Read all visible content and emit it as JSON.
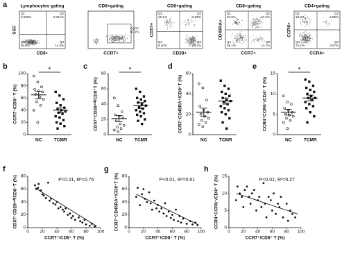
{
  "panel_a": {
    "label": "a",
    "plots": [
      {
        "title": "Lymphocytes gating",
        "x_label": "CD8+",
        "y_label": "SSC",
        "quadrants": [
          {
            "name": "Q1",
            "value": "0.000%"
          },
          {
            "name": "Q2",
            "value": "0.041%"
          },
          {
            "name": "Q4",
            "value": "85.6%"
          },
          {
            "name": "Q3",
            "value": "14.3%"
          }
        ]
      },
      {
        "title": "CD8+gating",
        "x_label": "CCR7+",
        "gate": {
          "name": "CCR7",
          "value": "81.2%"
        }
      },
      {
        "title": "CD8+gating",
        "x_label": "CD28+",
        "y_label": "CD57+",
        "quadrants": [
          {
            "name": "Q1",
            "value": "15.1%"
          },
          {
            "name": "Q2",
            "value": "8.89%"
          },
          {
            "name": "Q4",
            "value": "6.20%"
          },
          {
            "name": "Q3",
            "value": "69.7%"
          }
        ]
      },
      {
        "title": "CD8+gating",
        "x_label": "CCR7+",
        "y_label": "CD45RA+",
        "quadrants": [
          {
            "name": "Q1",
            "value": "20.6%"
          },
          {
            "name": "Q2",
            "value": "27.2%"
          },
          {
            "name": "Q4",
            "value": "39.1%"
          },
          {
            "name": "Q3",
            "value": "13.1%"
          }
        ]
      },
      {
        "title": "CD4+gating",
        "x_label": "CCR4+",
        "y_label": "CCR6+",
        "quadrants": [
          {
            "name": "Q1",
            "value": "18.9%"
          },
          {
            "name": "Q2",
            "value": "4.85%"
          },
          {
            "name": "Q4",
            "value": "73.1%"
          },
          {
            "name": "Q3",
            "value": "3.07%"
          }
        ]
      }
    ]
  },
  "chart_data": [
    {
      "type": "dot",
      "panel": "b",
      "y_label": "CCR7⁺/CD8⁺ T (%)",
      "categories": [
        "NC",
        "TCMR"
      ],
      "values": [
        [
          96,
          86,
          78,
          74,
          72,
          70,
          66,
          62,
          58,
          54,
          48,
          40,
          20
        ],
        [
          70,
          64,
          58,
          52,
          48,
          44,
          42,
          40,
          38,
          36,
          34,
          30,
          28,
          24,
          20,
          18,
          14,
          10
        ]
      ],
      "means": [
        65,
        40
      ],
      "sems": [
        6,
        4
      ],
      "annotation": "*",
      "ylim": [
        0,
        100
      ],
      "yticks": [
        0,
        20,
        40,
        60,
        80,
        100
      ]
    },
    {
      "type": "dot",
      "panel": "c",
      "y_label": "CD57⁺CD28ⁿᵘˡˡ/CD8⁺T (%)",
      "categories": [
        "NC",
        "TCMR"
      ],
      "values": [
        [
          48,
          38,
          30,
          26,
          24,
          22,
          18,
          14,
          12,
          10,
          8,
          6,
          4
        ],
        [
          60,
          56,
          50,
          48,
          46,
          44,
          42,
          40,
          38,
          36,
          34,
          32,
          30,
          28,
          26,
          24,
          20,
          18,
          14
        ]
      ],
      "means": [
        21,
        38
      ],
      "sems": [
        4,
        4
      ],
      "annotation": "*",
      "ylim": [
        0,
        80
      ],
      "yticks": [
        0,
        20,
        40,
        60,
        80
      ]
    },
    {
      "type": "dot",
      "panel": "d",
      "y_label": "CCR7⁻CD45RA⁺/CD8⁺T (%)",
      "categories": [
        "NC",
        "TCMR"
      ],
      "values": [
        [
          50,
          46,
          34,
          28,
          24,
          22,
          20,
          18,
          16,
          14,
          12,
          10,
          8
        ],
        [
          53,
          48,
          45,
          42,
          40,
          38,
          36,
          34,
          33,
          32,
          30,
          28,
          26,
          24,
          22,
          20,
          16,
          12,
          6
        ]
      ],
      "means": [
        22,
        33
      ],
      "sems": [
        4,
        3
      ],
      "ylim": [
        0,
        60
      ],
      "yticks": [
        0,
        20,
        40,
        60
      ]
    },
    {
      "type": "dot",
      "panel": "e",
      "y_label": "CCR4⁺CCR6⁺/CD4⁺ T (%)",
      "categories": [
        "NC",
        "TCMR"
      ],
      "values": [
        [
          9.5,
          8,
          7.5,
          6.5,
          6,
          5.5,
          5,
          4.8,
          4.5,
          4,
          3.5,
          3,
          1.5
        ],
        [
          13.5,
          13,
          12,
          11.5,
          11,
          10.5,
          10,
          9.5,
          9,
          9,
          8.5,
          8,
          7.5,
          7,
          6.5,
          5.5,
          4.5,
          3
        ]
      ],
      "means": [
        5.5,
        9
      ],
      "sems": [
        0.7,
        0.7
      ],
      "annotation": "*",
      "ylim": [
        0,
        15
      ],
      "yticks": [
        0,
        5,
        10,
        15
      ]
    },
    {
      "type": "scatter",
      "panel": "f",
      "x_label": "CCR7⁺/CD8⁺ T (%)",
      "y_label": "CD57⁺CD28ⁿᵘˡˡ/CD8⁺T (%)",
      "annotation": "P<0.01, R²=0.76",
      "x": [
        10,
        12,
        14,
        15,
        18,
        20,
        22,
        25,
        28,
        30,
        32,
        35,
        38,
        40,
        42,
        45,
        48,
        50,
        52,
        55,
        58,
        60,
        62,
        65,
        70,
        72,
        75,
        78,
        80,
        85,
        88,
        92
      ],
      "y": [
        66,
        60,
        62,
        68,
        58,
        52,
        50,
        46,
        70,
        42,
        45,
        38,
        36,
        40,
        30,
        32,
        28,
        25,
        30,
        20,
        22,
        15,
        18,
        12,
        16,
        10,
        8,
        12,
        5,
        3,
        6,
        2
      ],
      "fit": {
        "x": [
          10,
          95
        ],
        "y": [
          62,
          2
        ]
      },
      "xlim": [
        0,
        100
      ],
      "xticks": [
        0,
        20,
        40,
        60,
        80,
        100
      ],
      "ylim": [
        0,
        80
      ],
      "yticks": [
        0,
        20,
        40,
        60,
        80
      ]
    },
    {
      "type": "scatter",
      "panel": "g",
      "x_label": "CCR7⁺/CD8⁺ T (%)",
      "y_label": "CCR7⁻CD45RA⁺/CD8⁺T (%)",
      "annotation": "P<0.01, R²=0.61",
      "x": [
        10,
        12,
        15,
        18,
        20,
        22,
        25,
        28,
        30,
        32,
        35,
        38,
        40,
        42,
        45,
        48,
        50,
        52,
        55,
        58,
        60,
        62,
        65,
        68,
        70,
        72,
        75,
        80,
        85,
        88,
        92,
        95
      ],
      "y": [
        48,
        62,
        35,
        52,
        60,
        45,
        40,
        55,
        38,
        28,
        42,
        30,
        35,
        25,
        30,
        22,
        38,
        18,
        25,
        15,
        20,
        12,
        28,
        10,
        18,
        8,
        14,
        6,
        10,
        5,
        8,
        4
      ],
      "fit": {
        "x": [
          10,
          95
        ],
        "y": [
          52,
          5
        ]
      },
      "xlim": [
        0,
        100
      ],
      "xticks": [
        0,
        20,
        40,
        60,
        80,
        100
      ],
      "ylim": [
        0,
        80
      ],
      "yticks": [
        0,
        20,
        40,
        60,
        80
      ]
    },
    {
      "type": "scatter",
      "panel": "h",
      "x_label": "CCR7⁺/CD8⁺ T (%)",
      "y_label": "CCR4⁺CCR6⁺/CD4⁺ T (%)",
      "annotation": "P<0.01, R²=0.27",
      "x": [
        10,
        12,
        15,
        18,
        20,
        22,
        25,
        28,
        30,
        32,
        35,
        38,
        40,
        42,
        45,
        48,
        50,
        52,
        55,
        58,
        60,
        62,
        65,
        68,
        70,
        72,
        75,
        80,
        82,
        85,
        88,
        92
      ],
      "y": [
        8,
        12,
        10,
        9,
        6,
        11,
        12,
        9,
        7,
        10,
        11,
        5,
        8,
        9,
        6,
        13,
        7,
        3,
        9,
        8,
        5,
        10,
        4,
        7,
        6,
        9,
        3,
        7,
        2,
        5,
        4,
        3
      ],
      "fit": {
        "x": [
          10,
          95
        ],
        "y": [
          10,
          4
        ]
      },
      "xlim": [
        0,
        100
      ],
      "xticks": [
        0,
        20,
        40,
        60,
        80,
        100
      ],
      "ylim": [
        0,
        15
      ],
      "yticks": [
        0,
        5,
        10,
        15
      ]
    }
  ]
}
